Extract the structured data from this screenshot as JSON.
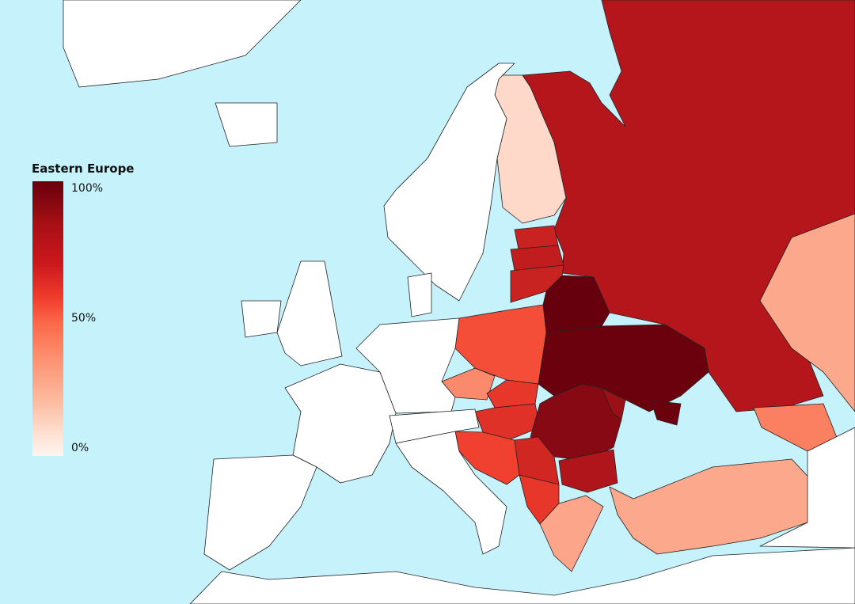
{
  "legend": {
    "title": "Eastern Europe",
    "ticks": [
      "100%",
      "50%",
      "0%"
    ],
    "color_stops": [
      "#67000d",
      "#cb181d",
      "#fb6a4a",
      "#fcbba1",
      "#fff5f0"
    ]
  },
  "colors": {
    "sea": "#c6f2fc",
    "no_data": "#ffffff",
    "border": "#222222"
  },
  "regions": [
    {
      "name": "russia",
      "value": 85
    },
    {
      "name": "finland",
      "value": 10
    },
    {
      "name": "estonia",
      "value": 80
    },
    {
      "name": "latvia",
      "value": 82
    },
    {
      "name": "lithuania",
      "value": 80
    },
    {
      "name": "belarus",
      "value": 100
    },
    {
      "name": "ukraine",
      "value": 99
    },
    {
      "name": "crimea",
      "value": 99
    },
    {
      "name": "poland",
      "value": 62
    },
    {
      "name": "czechia",
      "value": 38
    },
    {
      "name": "slovakia",
      "value": 72
    },
    {
      "name": "hungary",
      "value": 74
    },
    {
      "name": "romania",
      "value": 94
    },
    {
      "name": "moldova",
      "value": 90
    },
    {
      "name": "serbia",
      "value": 78
    },
    {
      "name": "bulgaria",
      "value": 86
    },
    {
      "name": "western-balkans",
      "value": 68
    },
    {
      "name": "southern-balkans",
      "value": 72
    },
    {
      "name": "greece",
      "value": 28
    },
    {
      "name": "turkey",
      "value": 27
    },
    {
      "name": "caucasus",
      "value": 42
    },
    {
      "name": "kazakhstan",
      "value": 27
    },
    {
      "name": "norway-sweden",
      "value": null
    },
    {
      "name": "france",
      "value": null
    },
    {
      "name": "iberia",
      "value": null
    },
    {
      "name": "germany-benelux",
      "value": null
    },
    {
      "name": "alpine",
      "value": null
    },
    {
      "name": "italy",
      "value": null
    },
    {
      "name": "great-britain",
      "value": null
    },
    {
      "name": "ireland",
      "value": null
    },
    {
      "name": "iceland",
      "value": null
    },
    {
      "name": "greenland",
      "value": null
    },
    {
      "name": "denmark",
      "value": null
    },
    {
      "name": "north-africa",
      "value": null
    },
    {
      "name": "middle-east",
      "value": null
    }
  ]
}
